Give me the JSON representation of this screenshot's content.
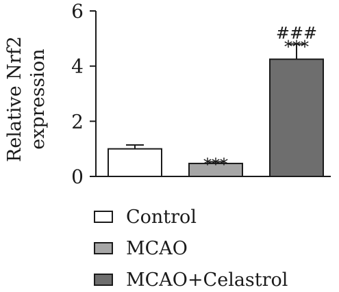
{
  "chart_data": {
    "type": "bar",
    "categories": [
      "Control",
      "MCAO",
      "MCAO+Celastrol"
    ],
    "values": [
      1.0,
      0.47,
      4.25
    ],
    "errors": [
      0.14,
      0.06,
      0.55
    ],
    "colors": [
      "#ffffff",
      "#a6a6a6",
      "#6e6e6e"
    ],
    "ylabel_line1": "Relative Nrf2",
    "ylabel_line2": "expression",
    "ylim": [
      0,
      6
    ],
    "yticks": [
      0,
      2,
      4,
      6
    ],
    "annotations": [
      {
        "bar": 1,
        "lines": [
          "***"
        ]
      },
      {
        "bar": 2,
        "lines": [
          "###",
          "***"
        ]
      }
    ],
    "legend": {
      "placement": "bottom",
      "entries": [
        "Control",
        "MCAO",
        "MCAO+Celastrol"
      ]
    }
  }
}
